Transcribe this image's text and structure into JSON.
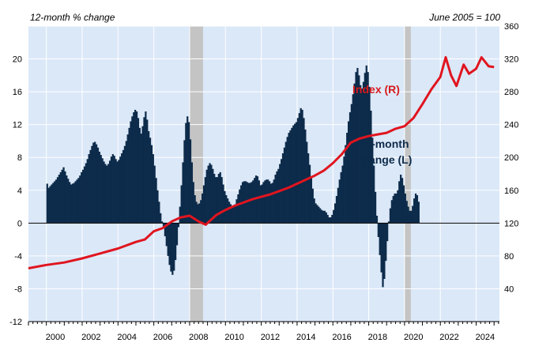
{
  "chart_data": {
    "type": "bar+line",
    "left_axis_label": "12-month % change",
    "right_axis_label": "June 2005 = 100",
    "left_ylim": [
      -12,
      24
    ],
    "left_ticks": [
      -12,
      -8,
      -4,
      0,
      4,
      8,
      12,
      16,
      20
    ],
    "right_ylim": [
      0,
      360
    ],
    "right_ticks": [
      40,
      80,
      120,
      160,
      200,
      240,
      280,
      320,
      360
    ],
    "x_range": [
      1999.0,
      2025.3
    ],
    "x_ticks": [
      "2000",
      "2002",
      "2004",
      "2006",
      "2008",
      "2010",
      "2012",
      "2014",
      "2016",
      "2018",
      "2020",
      "2022",
      "2024"
    ],
    "recessions": [
      [
        2008.0,
        2008.75
      ],
      [
        2020.0,
        2020.35
      ]
    ],
    "grid": true,
    "annotations": [
      {
        "text": "Index (R)",
        "color": "#d7191c"
      },
      {
        "text": "12-month",
        "color": "#0d2b4a"
      },
      {
        "text": "change (L)",
        "color": "#0d2b4a"
      }
    ],
    "series": [
      {
        "name": "Index (R)",
        "kind": "line",
        "axis": "right",
        "color": "#e0151f",
        "points": [
          [
            1999.0,
            65
          ],
          [
            2000.0,
            69
          ],
          [
            2001.0,
            72
          ],
          [
            2002.0,
            77
          ],
          [
            2003.0,
            83
          ],
          [
            2004.0,
            89
          ],
          [
            2005.0,
            97
          ],
          [
            2005.5,
            100
          ],
          [
            2006.0,
            110
          ],
          [
            2006.5,
            114
          ],
          [
            2007.0,
            122
          ],
          [
            2007.5,
            127
          ],
          [
            2008.0,
            129
          ],
          [
            2008.5,
            122
          ],
          [
            2008.9,
            118
          ],
          [
            2009.5,
            130
          ],
          [
            2010.0,
            136
          ],
          [
            2010.5,
            141
          ],
          [
            2011.0,
            145
          ],
          [
            2011.5,
            149
          ],
          [
            2012.0,
            152
          ],
          [
            2012.5,
            155
          ],
          [
            2013.0,
            159
          ],
          [
            2013.5,
            163
          ],
          [
            2014.0,
            168
          ],
          [
            2014.5,
            173
          ],
          [
            2015.0,
            178
          ],
          [
            2015.5,
            184
          ],
          [
            2016.0,
            193
          ],
          [
            2016.5,
            204
          ],
          [
            2017.0,
            218
          ],
          [
            2017.5,
            223
          ],
          [
            2018.0,
            226
          ],
          [
            2018.5,
            228
          ],
          [
            2019.0,
            230
          ],
          [
            2019.5,
            235
          ],
          [
            2020.0,
            238
          ],
          [
            2020.5,
            248
          ],
          [
            2021.0,
            265
          ],
          [
            2021.5,
            283
          ],
          [
            2022.0,
            298
          ],
          [
            2022.3,
            322
          ],
          [
            2022.6,
            300
          ],
          [
            2022.9,
            287
          ],
          [
            2023.3,
            313
          ],
          [
            2023.6,
            302
          ],
          [
            2024.0,
            308
          ],
          [
            2024.3,
            322
          ],
          [
            2024.7,
            311
          ],
          [
            2025.0,
            310
          ]
        ]
      },
      {
        "name": "12-month change (L)",
        "kind": "bar",
        "axis": "left",
        "color": "#0d2b4a",
        "start": 2000.0,
        "step": 0.0833,
        "values": [
          4.8,
          4.3,
          4.5,
          4.7,
          4.9,
          5.1,
          5.3,
          5.6,
          5.9,
          6.2,
          6.5,
          6.8,
          6.3,
          5.8,
          5.4,
          5.0,
          4.7,
          4.8,
          4.9,
          5.1,
          5.3,
          5.5,
          5.8,
          6.2,
          6.5,
          6.9,
          7.3,
          7.8,
          8.4,
          8.9,
          9.4,
          9.8,
          9.9,
          9.6,
          9.2,
          8.7,
          8.3,
          7.9,
          7.5,
          7.2,
          7.0,
          7.2,
          7.6,
          8.1,
          8.4,
          8.2,
          7.8,
          7.5,
          7.7,
          8.1,
          8.5,
          8.9,
          9.4,
          10.0,
          10.8,
          11.6,
          12.4,
          13.0,
          13.5,
          13.8,
          13.6,
          12.8,
          11.6,
          10.9,
          11.8,
          12.9,
          13.6,
          12.6,
          11.2,
          10.4,
          9.5,
          8.4,
          7.0,
          5.5,
          4.0,
          2.6,
          1.2,
          0.2,
          -0.6,
          -1.6,
          -2.8,
          -4.0,
          -5.1,
          -5.9,
          -6.3,
          -5.8,
          -4.5,
          -2.7,
          -0.5,
          2.0,
          4.6,
          7.4,
          10.1,
          12.2,
          13.0,
          12.3,
          10.2,
          7.4,
          5.0,
          3.4,
          2.6,
          2.3,
          2.4,
          2.8,
          3.6,
          4.6,
          5.6,
          6.5,
          7.0,
          7.3,
          7.1,
          6.6,
          6.0,
          5.6,
          5.6,
          6.0,
          6.2,
          5.6,
          4.7,
          3.9,
          3.4,
          3.0,
          2.6,
          2.3,
          2.1,
          2.0,
          2.3,
          2.9,
          3.5,
          4.1,
          4.6,
          5.0,
          5.1,
          5.1,
          5.0,
          4.9,
          4.9,
          5.0,
          5.2,
          5.5,
          5.8,
          5.7,
          5.2,
          4.6,
          4.7,
          5.0,
          5.2,
          5.3,
          5.3,
          5.1,
          4.8,
          4.9,
          5.3,
          5.9,
          6.3,
          6.6,
          7.2,
          7.8,
          8.5,
          9.2,
          9.9,
          10.5,
          11.0,
          11.3,
          11.6,
          11.9,
          12.1,
          12.3,
          12.8,
          13.4,
          14.0,
          13.8,
          12.8,
          11.4,
          9.9,
          8.5,
          7.1,
          5.6,
          4.2,
          3.0,
          2.4,
          2.2,
          2.0,
          1.8,
          1.6,
          1.5,
          1.5,
          1.3,
          1.0,
          0.7,
          0.7,
          1.0,
          1.6,
          2.4,
          3.3,
          4.3,
          5.3,
          6.2,
          7.0,
          8.1,
          9.5,
          11.0,
          12.4,
          13.5,
          14.5,
          15.7,
          17.0,
          18.4,
          18.9,
          18.0,
          16.8,
          16.4,
          17.2,
          18.3,
          19.2,
          18.4,
          16.6,
          13.7,
          10.4,
          7.0,
          3.8,
          0.9,
          -1.7,
          -3.9,
          -6.0,
          -7.8,
          -6.8,
          -4.6,
          -2.2,
          0.2,
          1.8,
          2.8,
          3.3,
          3.6,
          3.6,
          4.0,
          5.1,
          5.9,
          5.5,
          4.6,
          3.6,
          2.7,
          2.0,
          1.5,
          1.5,
          2.1,
          3.0,
          3.6,
          3.4,
          2.6
        ]
      }
    ]
  }
}
